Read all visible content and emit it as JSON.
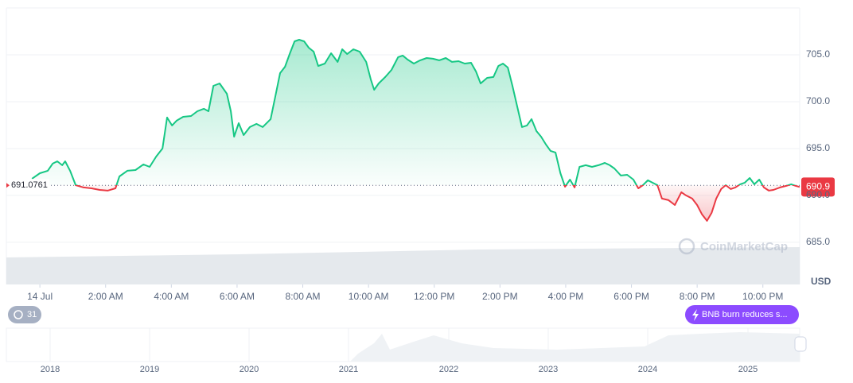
{
  "chart_data": {
    "type": "line",
    "unit": "USD",
    "x": [
      -0.24,
      0,
      0.24,
      0.39,
      0.53,
      0.68,
      0.77,
      0.92,
      1.09,
      1.33,
      1.57,
      1.82,
      2.06,
      2.3,
      2.42,
      2.66,
      2.91,
      3.15,
      3.34,
      3.54,
      3.73,
      3.87,
      4.02,
      4.16,
      4.36,
      4.6,
      4.79,
      4.99,
      5.13,
      5.28,
      5.47,
      5.69,
      5.81,
      5.91,
      6.05,
      6.2,
      6.39,
      6.59,
      6.78,
      7.02,
      7.17,
      7.31,
      7.46,
      7.6,
      7.75,
      7.89,
      8.04,
      8.18,
      8.33,
      8.47,
      8.67,
      8.86,
      9.06,
      9.2,
      9.35,
      9.54,
      9.73,
      9.93,
      10.07,
      10.17,
      10.31,
      10.51,
      10.7,
      10.9,
      11.04,
      11.19,
      11.38,
      11.57,
      11.77,
      11.96,
      12.15,
      12.35,
      12.54,
      12.74,
      12.93,
      13.12,
      13.27,
      13.41,
      13.61,
      13.8,
      13.95,
      14.09,
      14.24,
      14.38,
      14.53,
      14.67,
      14.82,
      14.96,
      15.11,
      15.25,
      15.4,
      15.54,
      15.69,
      15.84,
      15.98,
      16.13,
      16.27,
      16.42,
      16.61,
      16.8,
      17.0,
      17.19,
      17.34,
      17.48,
      17.68,
      17.87,
      18.06,
      18.21,
      18.35,
      18.5,
      18.64,
      18.79,
      18.93,
      19.13,
      19.32,
      19.52,
      19.66,
      19.85,
      20.0,
      20.15,
      20.3,
      20.44,
      20.58,
      20.73,
      20.87,
      21.02,
      21.16,
      21.31,
      21.45,
      21.6,
      21.74,
      21.89,
      22.03,
      22.18,
      22.32,
      22.52,
      22.71,
      22.86,
      23.0,
      23.12
    ],
    "series": [
      {
        "name": "BNB",
        "color": "#16c784",
        "below_color": "#ea3943",
        "values": [
          691.78,
          692.37,
          692.63,
          693.39,
          693.64,
          693.22,
          693.64,
          692.63,
          691.1,
          690.85,
          690.76,
          690.59,
          690.51,
          690.76,
          692.03,
          692.63,
          692.71,
          693.31,
          693.05,
          694.15,
          695.0,
          698.31,
          697.46,
          697.97,
          698.39,
          698.47,
          698.98,
          699.24,
          698.98,
          701.69,
          701.95,
          700.85,
          698.98,
          696.27,
          697.71,
          696.44,
          697.29,
          697.63,
          697.29,
          698.14,
          700.68,
          703.05,
          703.73,
          705.08,
          706.44,
          706.61,
          706.44,
          705.76,
          705.34,
          703.81,
          704.07,
          705.17,
          704.24,
          705.59,
          705.08,
          705.59,
          705.34,
          704.24,
          702.37,
          701.27,
          701.95,
          702.63,
          703.39,
          704.75,
          704.92,
          704.49,
          704.07,
          704.41,
          704.66,
          704.58,
          704.41,
          704.66,
          704.24,
          704.32,
          704.07,
          704.15,
          703.22,
          701.95,
          702.54,
          702.63,
          703.81,
          704.07,
          703.64,
          701.69,
          699.41,
          697.29,
          697.46,
          698.14,
          696.86,
          696.27,
          695.42,
          694.75,
          694.58,
          692.37,
          690.93,
          691.69,
          690.85,
          693.05,
          693.22,
          693.05,
          693.22,
          693.47,
          693.22,
          692.88,
          692.12,
          692.2,
          691.69,
          690.76,
          691.1,
          691.61,
          691.36,
          691.1,
          689.66,
          689.49,
          688.98,
          690.34,
          690.0,
          689.66,
          688.98,
          687.97,
          687.29,
          688.14,
          689.66,
          690.68,
          691.1,
          690.68,
          690.85,
          691.19,
          691.36,
          691.86,
          691.19,
          691.69,
          690.85,
          690.51,
          690.59,
          690.85,
          691.02,
          691.19,
          691.02,
          690.9
        ]
      }
    ],
    "baseline": 691.0761,
    "current_price": 690.9,
    "xlim": [
      -1.02,
      23.12
    ],
    "ylim": [
      680.5,
      710
    ],
    "xticks": [
      {
        "value": 0,
        "label": "14 Jul"
      },
      {
        "value": 2,
        "label": "2:00 AM"
      },
      {
        "value": 4,
        "label": "4:00 AM"
      },
      {
        "value": 6,
        "label": "6:00 AM"
      },
      {
        "value": 8,
        "label": "8:00 AM"
      },
      {
        "value": 10,
        "label": "10:00 AM"
      },
      {
        "value": 12,
        "label": "12:00 PM"
      },
      {
        "value": 14,
        "label": "2:00 PM"
      },
      {
        "value": 16,
        "label": "4:00 PM"
      },
      {
        "value": 18,
        "label": "6:00 PM"
      },
      {
        "value": 20,
        "label": "8:00 PM"
      },
      {
        "value": 22,
        "label": "10:00 PM"
      }
    ],
    "yticks": [
      {
        "value": 685,
        "label": "685.0"
      },
      {
        "value": 690,
        "label": "690.0"
      },
      {
        "value": 695,
        "label": "695.0"
      },
      {
        "value": 700,
        "label": "700.0"
      },
      {
        "value": 705,
        "label": "705.0"
      }
    ],
    "grid": true,
    "navigator_labels": [
      "2018",
      "2019",
      "2020",
      "2021",
      "2022",
      "2023",
      "2024",
      "2025"
    ]
  },
  "ui": {
    "badge": "31",
    "news": "BNB burn reduces s...",
    "watermark": "CoinMarketCap"
  }
}
